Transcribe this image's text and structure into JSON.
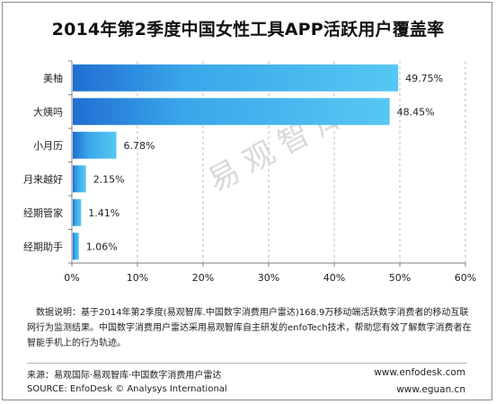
{
  "title": "2014年第2季度中国女性工具APP活跃用户覆盖率",
  "watermark": "易观智库",
  "note": "数据说明：基于2014年第2季度(易观智库.中国数字消费用户雷达)168.9万移动端活跃数字消费者的移动互联网行为监测结果。中国数字消费用户雷达采用易观智库自主研发的enfoTech技术，帮助您有效了解数字消费者在智能手机上的行为轨迹。",
  "source_cn": "来源：易观国际·易观智库·中国数字消费用户雷达",
  "source_en": "SOURCE: EnfoDesk © Analysys International",
  "url_1": "www.enfodesk.com",
  "url_2": "www.eguan.cn",
  "colors": {
    "bar_dark": "#1f6fd1",
    "bar_light": "#56c8f3"
  },
  "chart_data": {
    "type": "bar",
    "orientation": "horizontal",
    "categories": [
      "美柚",
      "大姨吗",
      "小月历",
      "月来越好",
      "经期管家",
      "经期助手"
    ],
    "values": [
      49.75,
      48.45,
      6.78,
      2.15,
      1.41,
      1.06
    ],
    "value_labels": [
      "49.75%",
      "48.45%",
      "6.78%",
      "2.15%",
      "1.41%",
      "1.06%"
    ],
    "xlim": [
      0,
      60
    ],
    "xticks": [
      0,
      10,
      20,
      30,
      40,
      50,
      60
    ],
    "xtick_labels": [
      "0%",
      "10%",
      "20%",
      "30%",
      "40%",
      "50%",
      "60%"
    ],
    "grid": "vertical dashed"
  }
}
